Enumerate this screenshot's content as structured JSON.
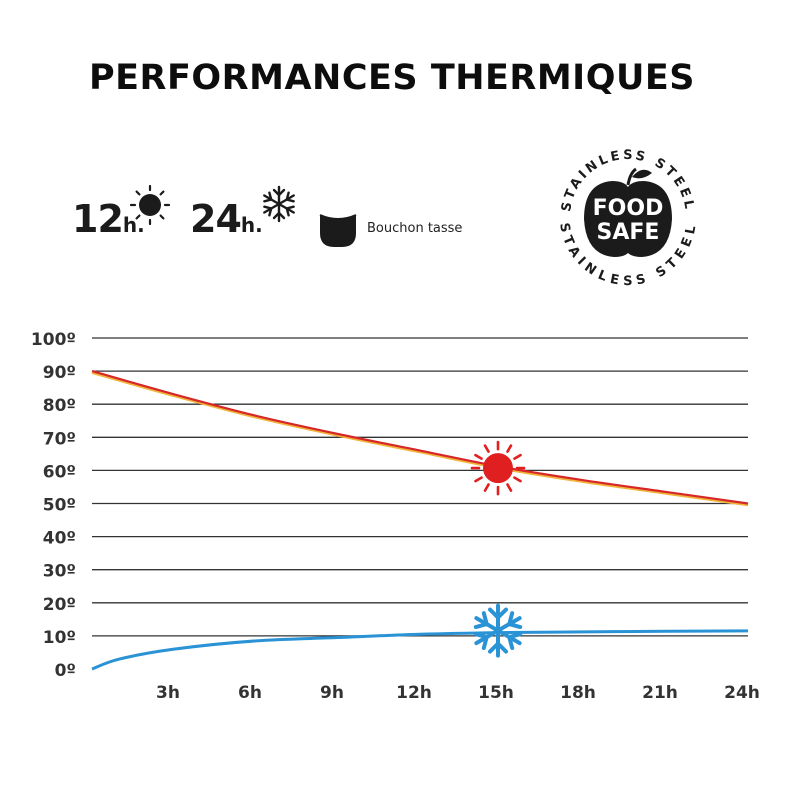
{
  "title": "PERFORMANCES THERMIQUES",
  "legend": {
    "hot": {
      "value": "12",
      "unit": "h.",
      "icon": "sun-icon"
    },
    "cold": {
      "value": "24",
      "unit": "h.",
      "icon": "snowflake-icon"
    },
    "cup": {
      "label": "Bouchon tasse",
      "icon": "cup-lid-icon"
    }
  },
  "badge": {
    "ring_text_top": "STAINLESS STEEL",
    "ring_text_bottom": "STAINLESS STEEL",
    "line1": "FOOD",
    "line2": "SAFE",
    "icon": "apple-icon"
  },
  "chart_data": {
    "type": "line",
    "title": "",
    "xlabel": "",
    "ylabel": "",
    "x_ticks": [
      "3h",
      "6h",
      "9h",
      "12h",
      "15h",
      "18h",
      "21h",
      "24h"
    ],
    "y_ticks": [
      "100º",
      "90º",
      "80º",
      "70º",
      "60º",
      "50º",
      "40º",
      "30º",
      "20º",
      "10º",
      "0º"
    ],
    "xlim": [
      0,
      24
    ],
    "ylim": [
      0,
      100
    ],
    "grid": true,
    "series": [
      {
        "color": "#d62828",
        "marker_icon": "sun-icon",
        "x": [
          0,
          3,
          6,
          9,
          12,
          15,
          18,
          21,
          24
        ],
        "y": [
          90,
          83,
          76.5,
          71,
          66,
          61,
          57,
          53.5,
          50
        ]
      },
      {
        "color": "#2a93d5",
        "marker_icon": "snowflake-icon",
        "x": [
          0,
          1,
          3,
          6,
          9,
          12,
          15,
          18,
          21,
          24
        ],
        "y": [
          0,
          3,
          6,
          8.5,
          9.5,
          10.5,
          11,
          11.2,
          11.4,
          11.5
        ]
      }
    ],
    "colors": {
      "grid": "#333333",
      "hot_marker": "#e02020",
      "cold_marker": "#2a93d5"
    }
  }
}
